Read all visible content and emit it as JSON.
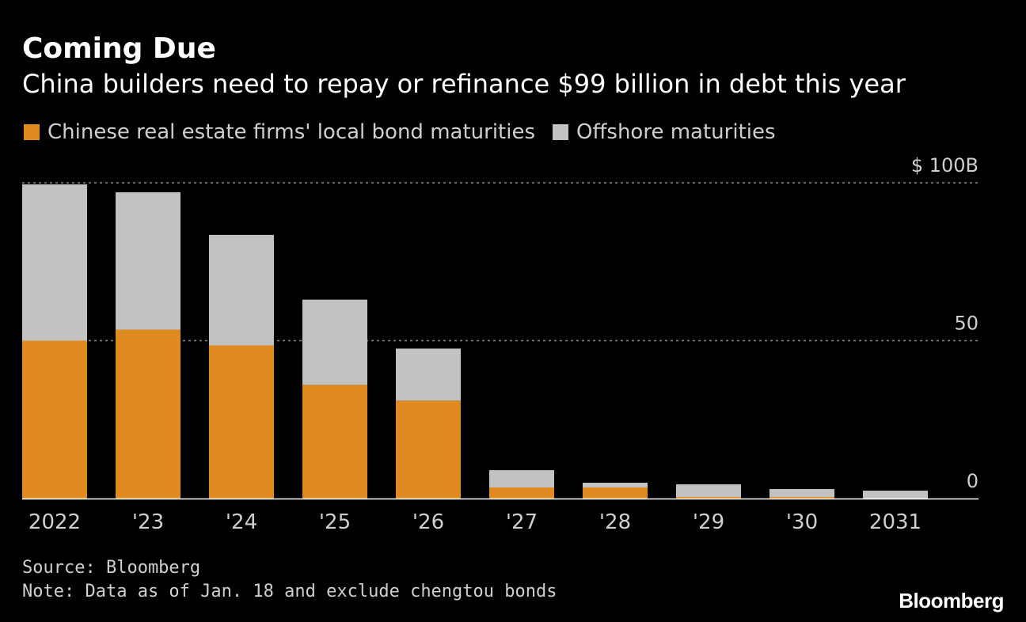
{
  "title": "Coming Due",
  "subtitle": "China builders need to repay or refinance $99 billion in debt this year",
  "legend": [
    {
      "label": "Chinese real estate firms' local bond maturities",
      "color": "#E08B22"
    },
    {
      "label": "Offshore maturities",
      "color": "#C2C2C2"
    }
  ],
  "colors": {
    "background": "#000000",
    "onshore": "#E08B22",
    "offshore": "#C2C2C2",
    "gridline": "#8a8a8a",
    "text": "#ffffff",
    "muted_text": "#cfcfcf"
  },
  "chart_data": {
    "type": "bar",
    "stacked": true,
    "categories": [
      "2022",
      "'23",
      "'24",
      "'25",
      "'26",
      "'27",
      "'28",
      "'29",
      "'30",
      "2031"
    ],
    "series": [
      {
        "name": "Chinese real estate firms' local bond maturities",
        "values": [
          50,
          53.5,
          48.5,
          36,
          31,
          3.5,
          3.5,
          0.5,
          0.5,
          0
        ]
      },
      {
        "name": "Offshore maturities",
        "values": [
          49.5,
          43.5,
          35,
          27,
          16.5,
          5.5,
          1.5,
          4,
          2.5,
          2.5
        ]
      }
    ],
    "ylim": [
      0,
      100
    ],
    "yticks": [
      0,
      50,
      100
    ],
    "ytick_labels": [
      "0",
      "50",
      "$ 100B"
    ],
    "ylabel": "",
    "xlabel": "",
    "grid": true,
    "legend_position": "top-left"
  },
  "footer": {
    "source": "Source: Bloomberg",
    "note": "Note: Data as of Jan. 18 and exclude chengtou bonds"
  },
  "brand": "Bloomberg"
}
